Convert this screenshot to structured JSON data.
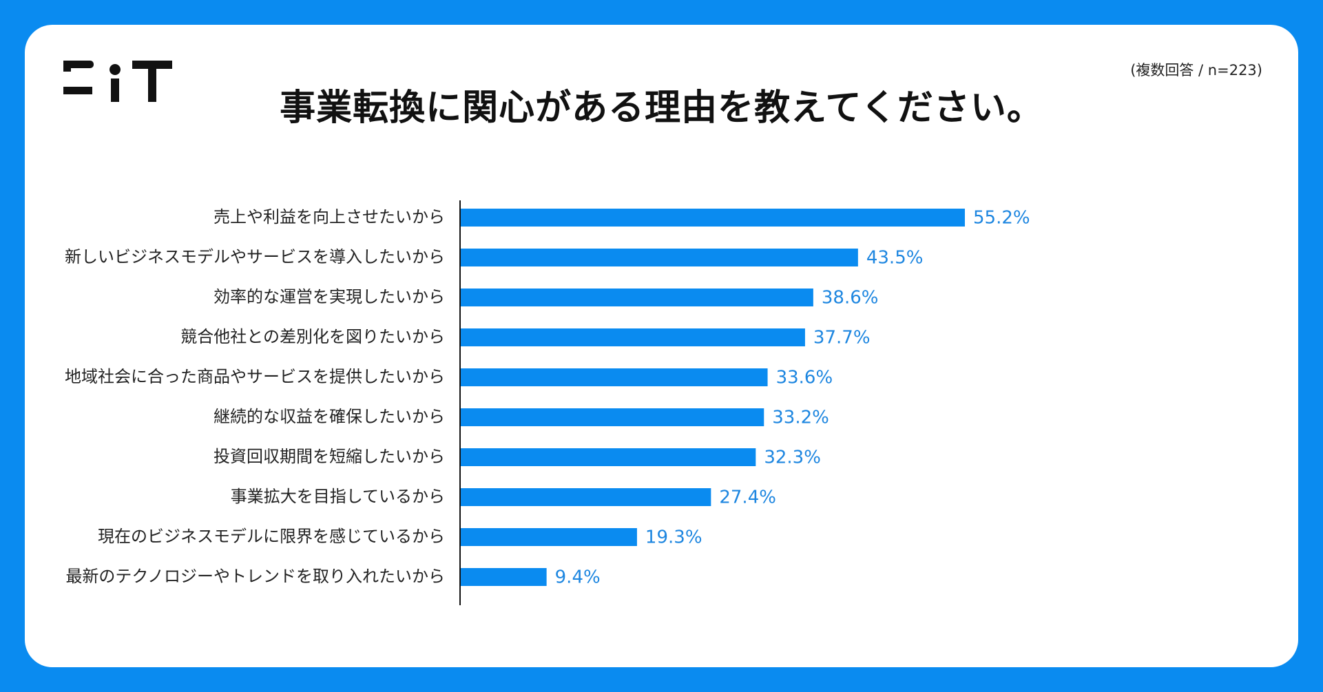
{
  "brand": {
    "logo_text": "FIT",
    "logo_color": "#111111"
  },
  "frame": {
    "background_color": "#0a8bf0",
    "card_color": "#ffffff"
  },
  "header": {
    "title": "事業転換に関心がある理由を教えてください。",
    "note": "(複数回答 / n=223)"
  },
  "chart_data": {
    "type": "bar",
    "orientation": "horizontal",
    "title": "事業転換に関心がある理由を教えてください。",
    "xlabel": "",
    "ylabel": "",
    "xlim": [
      0,
      60
    ],
    "grid": false,
    "legend": "none",
    "bar_color": "#0a8bf0",
    "value_label_color": "#1d86e0",
    "value_suffix": "%",
    "categories": [
      "売上や利益を向上させたいから",
      "新しいビジネスモデルやサービスを導入したいから",
      "効率的な運営を実現したいから",
      "競合他社との差別化を図りたいから",
      "地域社会に合った商品やサービスを提供したいから",
      "継続的な収益を確保したいから",
      "投資回収期間を短縮したいから",
      "事業拡大を目指しているから",
      "現在のビジネスモデルに限界を感じているから",
      "最新のテクノロジーやトレンドを取り入れたいから"
    ],
    "values": [
      55.2,
      43.5,
      38.6,
      37.7,
      33.6,
      33.2,
      32.3,
      27.4,
      19.3,
      9.4
    ]
  }
}
